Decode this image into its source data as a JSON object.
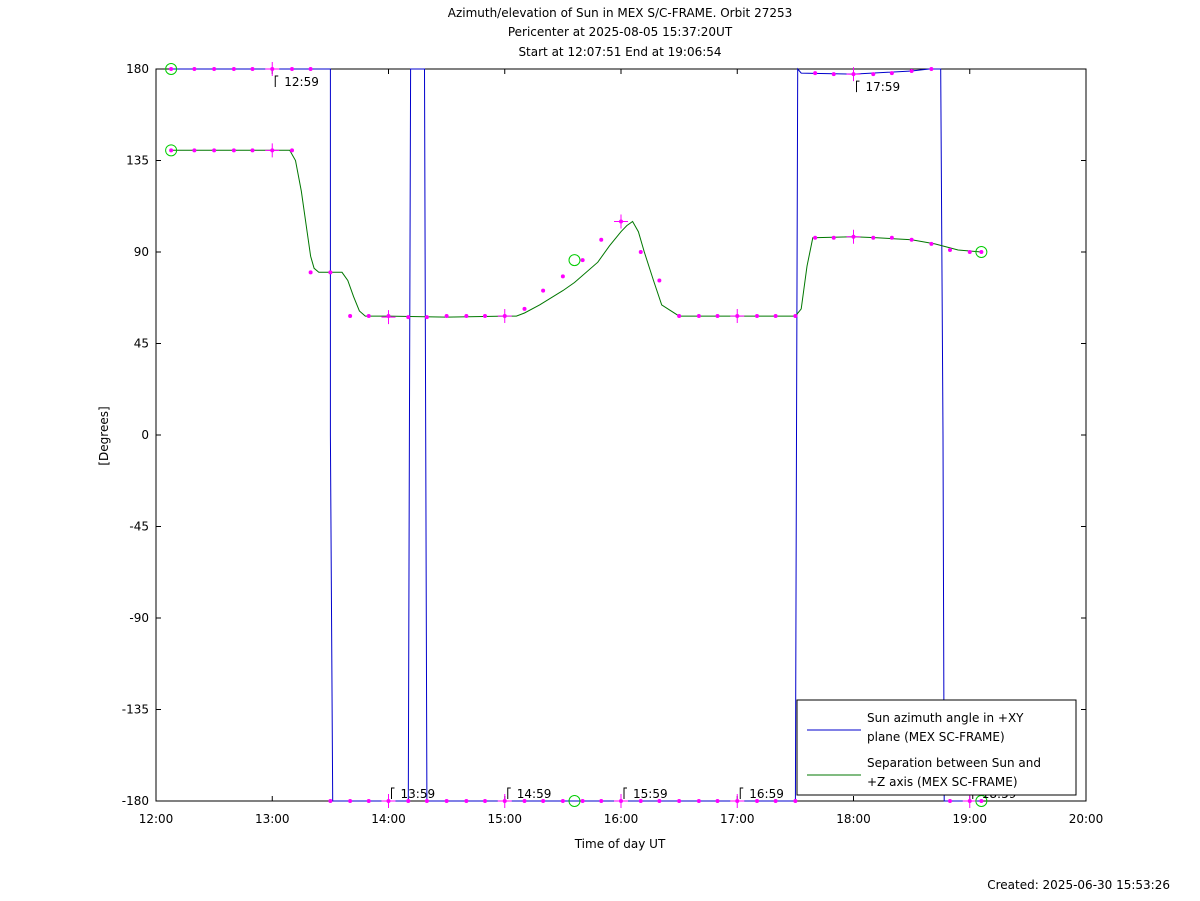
{
  "chart_data": {
    "type": "line",
    "title": [
      "Azimuth/elevation of Sun in MEX S/C-FRAME.  Orbit 27253",
      "Pericenter at 2025-08-05 15:37:20UT",
      "Start at 12:07:51 End at 19:06:54"
    ],
    "xlabel": "Time of day UT",
    "ylabel": "[Degrees]",
    "xlim": [
      0,
      8
    ],
    "ylim": [
      -180,
      180
    ],
    "x_unit_note": "",
    "xticks": [
      {
        "v": 0,
        "label": "12:00"
      },
      {
        "v": 1,
        "label": "13:00"
      },
      {
        "v": 2,
        "label": "14:00"
      },
      {
        "v": 3,
        "label": "15:00"
      },
      {
        "v": 4,
        "label": "16:00"
      },
      {
        "v": 5,
        "label": "17:00"
      },
      {
        "v": 6,
        "label": "18:00"
      },
      {
        "v": 7,
        "label": "19:00"
      },
      {
        "v": 8,
        "label": "20:00"
      }
    ],
    "yticks": [
      {
        "v": 180,
        "label": "180"
      },
      {
        "v": 135,
        "label": "135"
      },
      {
        "v": 90,
        "label": "90"
      },
      {
        "v": 45,
        "label": "45"
      },
      {
        "v": 0,
        "label": "0"
      },
      {
        "v": -45,
        "label": "-45"
      },
      {
        "v": -90,
        "label": "-90"
      },
      {
        "v": -135,
        "label": "-135"
      },
      {
        "v": -180,
        "label": "-180"
      }
    ],
    "legend_position": "bottom-right",
    "series": [
      {
        "name": "Sun azimuth angle in +XY plane (MEX SC-FRAME)",
        "legend_lines": [
          "Sun azimuth angle in +XY",
          "plane (MEX SC-FRAME)"
        ],
        "color": "#0000cc",
        "x": [
          0.13,
          1.5,
          1.5,
          1.52,
          2.17,
          2.18,
          2.19,
          2.31,
          2.32,
          2.33,
          2.35,
          5.5,
          5.51,
          5.52,
          5.55,
          6.0,
          6.5,
          6.65,
          6.75,
          6.77,
          6.78,
          7.1
        ],
        "y": [
          180,
          180,
          0,
          -180,
          -180,
          0,
          180,
          180,
          0,
          -180,
          -180,
          -180,
          0,
          180,
          178,
          177.5,
          179,
          180,
          180,
          0,
          -180,
          -180
        ]
      },
      {
        "name": "Separation between Sun and +Z axis (MEX SC-FRAME)",
        "legend_lines": [
          "Separation between Sun and",
          "+Z axis (MEX SC-FRAME)"
        ],
        "color": "#007700",
        "x": [
          0.13,
          0.3,
          0.5,
          0.7,
          0.9,
          1.0,
          1.15,
          1.2,
          1.25,
          1.3,
          1.33,
          1.36,
          1.4,
          1.45,
          1.6,
          1.65,
          1.7,
          1.75,
          1.8,
          2.0,
          2.5,
          3.0,
          3.1,
          3.17,
          3.3,
          3.5,
          3.6,
          3.8,
          3.9,
          4.0,
          4.05,
          4.1,
          4.15,
          4.2,
          4.28,
          4.35,
          4.5,
          5.0,
          5.5,
          5.55,
          5.6,
          5.65,
          6.0,
          6.2,
          6.5,
          6.7,
          6.9,
          7.1
        ],
        "y": [
          140,
          140,
          140,
          140,
          140,
          140,
          140,
          135,
          120,
          100,
          88,
          82,
          80,
          80,
          80,
          76,
          68,
          61,
          58.5,
          58.5,
          58,
          58.5,
          58.5,
          60,
          64,
          71,
          75,
          85,
          93,
          100,
          103,
          105,
          100,
          90,
          76,
          64,
          58.5,
          58.5,
          58.5,
          62,
          83,
          97,
          97.5,
          97,
          96,
          94,
          91,
          90
        ]
      }
    ],
    "markers": {
      "color": "#ff00ff",
      "azimuth_x": [
        0.13,
        0.33,
        0.5,
        0.67,
        0.83,
        1.0,
        1.17,
        1.33,
        1.5,
        1.67,
        1.83,
        2.0,
        2.17,
        2.33,
        2.5,
        2.67,
        2.83,
        3.0,
        3.17,
        3.33,
        3.5,
        3.67,
        3.83,
        4.0,
        4.17,
        4.33,
        4.5,
        4.67,
        4.83,
        5.0,
        5.17,
        5.33,
        5.5,
        5.67,
        5.83,
        6.0,
        6.17,
        6.33,
        6.5,
        6.67,
        6.83,
        7.0,
        7.1
      ],
      "azimuth_y": [
        180,
        180,
        180,
        180,
        180,
        180,
        180,
        180,
        -180,
        -180,
        -180,
        -180,
        -180,
        -180,
        -180,
        -180,
        -180,
        -180,
        -180,
        -180,
        -180,
        -180,
        -180,
        -180,
        -180,
        -180,
        -180,
        -180,
        -180,
        -180,
        -180,
        -180,
        -180,
        178,
        177.5,
        177.5,
        177.5,
        178,
        179,
        180,
        -180,
        -180,
        -180
      ],
      "separation_x": [
        0.13,
        0.33,
        0.5,
        0.67,
        0.83,
        1.0,
        1.17,
        1.33,
        1.5,
        1.67,
        1.83,
        2.0,
        2.17,
        2.33,
        2.5,
        2.67,
        2.83,
        3.0,
        3.17,
        3.33,
        3.5,
        3.67,
        3.83,
        4.0,
        4.17,
        4.33,
        4.5,
        4.67,
        4.83,
        5.0,
        5.17,
        5.33,
        5.5,
        5.67,
        5.83,
        6.0,
        6.17,
        6.33,
        6.5,
        6.67,
        6.83,
        7.0,
        7.1
      ],
      "separation_y": [
        140,
        140,
        140,
        140,
        140,
        140,
        140,
        80,
        80,
        58.5,
        58.5,
        58.5,
        58,
        58,
        58.5,
        58.5,
        58.5,
        58.5,
        62,
        71,
        78,
        86,
        96,
        105,
        90,
        76,
        58.5,
        58.5,
        58.5,
        58.5,
        58.5,
        58.5,
        58.5,
        97,
        97,
        97.5,
        97,
        97,
        96,
        94,
        91,
        90,
        90
      ],
      "hour_ticks_azimuth_x": [
        1.0,
        2.0,
        3.0,
        4.0,
        5.0,
        6.0,
        7.0
      ],
      "hour_ticks_azimuth_y": [
        180,
        -180,
        -180,
        -180,
        -180,
        177.5,
        -180
      ],
      "hour_ticks_separation_x": [
        1.0,
        2.0,
        3.0,
        4.0,
        5.0,
        6.0
      ],
      "hour_ticks_separation_y": [
        140,
        58,
        58.5,
        105,
        58.5,
        97.5
      ]
    },
    "circle_markers": {
      "color": "#00cc00",
      "points": [
        {
          "x": 0.13,
          "y": 180
        },
        {
          "x": 0.13,
          "y": 140
        },
        {
          "x": 3.6,
          "y": 86
        },
        {
          "x": 3.6,
          "y": -180
        },
        {
          "x": 7.1,
          "y": 90
        },
        {
          "x": 7.1,
          "y": -180
        }
      ]
    },
    "time_annotations": [
      {
        "x": 1.0,
        "y": 180,
        "label": "12:59",
        "side": "below"
      },
      {
        "x": 2.0,
        "y": -180,
        "label": "13:59",
        "side": "above"
      },
      {
        "x": 3.0,
        "y": -180,
        "label": "14:59",
        "side": "above"
      },
      {
        "x": 4.0,
        "y": -180,
        "label": "15:59",
        "side": "above"
      },
      {
        "x": 5.0,
        "y": -180,
        "label": "16:59",
        "side": "above"
      },
      {
        "x": 6.0,
        "y": 177.5,
        "label": "17:59",
        "side": "below"
      },
      {
        "x": 7.0,
        "y": -180,
        "label": "18:59",
        "side": "above"
      }
    ]
  },
  "footer": {
    "created": "Created: 2025-06-30 15:53:26"
  }
}
